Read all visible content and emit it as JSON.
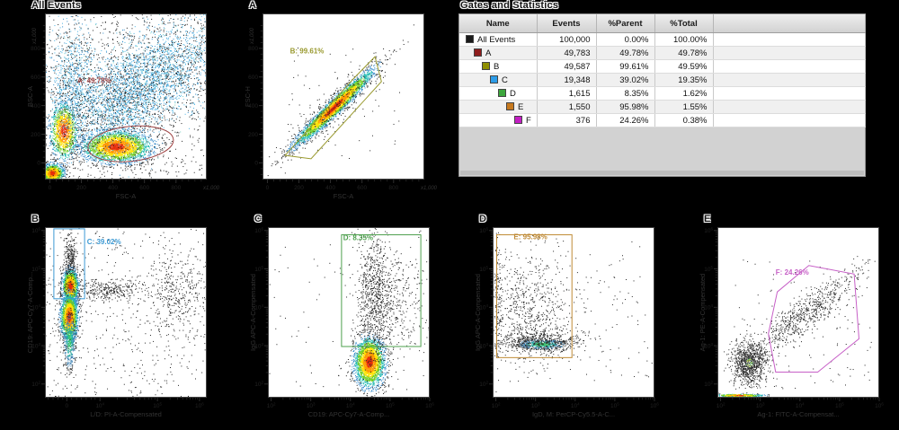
{
  "panel": {
    "title": "Gates and Statistics"
  },
  "table": {
    "columns": [
      "Name",
      "Events",
      "%Parent",
      "%Total",
      ""
    ],
    "rows": [
      {
        "name": "All Events",
        "color": "#1a1a1a",
        "level": 0,
        "events": "100,000",
        "parent": "0.00%",
        "total": "100.00%"
      },
      {
        "name": "A",
        "color": "#8f1d1d",
        "level": 1,
        "events": "49,783",
        "parent": "49.78%",
        "total": "49.78%"
      },
      {
        "name": "B",
        "color": "#8f8f00",
        "level": 2,
        "events": "49,587",
        "parent": "99.61%",
        "total": "49.59%"
      },
      {
        "name": "C",
        "color": "#2d9ce8",
        "level": 3,
        "events": "19,348",
        "parent": "39.02%",
        "total": "19.35%"
      },
      {
        "name": "D",
        "color": "#3ca63c",
        "level": 4,
        "events": "1,615",
        "parent": "8.35%",
        "total": "1.62%"
      },
      {
        "name": "E",
        "color": "#c7791e",
        "level": 5,
        "events": "1,550",
        "parent": "95.98%",
        "total": "1.55%"
      },
      {
        "name": "F",
        "color": "#c31ec3",
        "level": 6,
        "events": "376",
        "parent": "24.26%",
        "total": "0.38%"
      }
    ]
  },
  "chart_data": [
    {
      "id": "all-events",
      "title": "All Events",
      "type": "scatter",
      "xlabel": "FSC-A",
      "ylabel": "BSC-A",
      "x_scale": "linear",
      "y_scale": "linear",
      "x_range": [
        0,
        1000000
      ],
      "y_range": [
        0,
        1000000
      ],
      "x_multiplier": "x1,000",
      "y_multiplier": "x1,000",
      "x_majors": [
        {
          "f": 0.03,
          "t": "0"
        },
        {
          "f": 0.225,
          "t": "200"
        },
        {
          "f": 0.42,
          "t": "400"
        },
        {
          "f": 0.615,
          "t": "600"
        },
        {
          "f": 0.81,
          "t": "800"
        }
      ],
      "y_majors": [
        {
          "f": 0.21,
          "t": "800"
        },
        {
          "f": 0.3825,
          "t": "600"
        },
        {
          "f": 0.555,
          "t": "400"
        },
        {
          "f": 0.7275,
          "t": "200"
        },
        {
          "f": 0.9,
          "t": "0"
        }
      ],
      "gate": {
        "name": "A",
        "label": "A: 49.78%",
        "percent": 49.78,
        "color": "#a04545",
        "type": "ellipse",
        "cx": 0.53,
        "cy": 0.785,
        "rx": 0.265,
        "ry": 0.105,
        "rot": -6,
        "label_x": 0.2,
        "label_y": 0.42
      },
      "clusters": [
        {
          "palette": "hot",
          "cx": 0.045,
          "cy": 0.96,
          "sx": 0.035,
          "sy": 0.028,
          "n": 1100
        },
        {
          "palette": "hot",
          "cx": 0.115,
          "cy": 0.705,
          "sx": 0.042,
          "sy": 0.085,
          "n": 1300
        },
        {
          "palette": "hot",
          "cx": 0.44,
          "cy": 0.8,
          "sx": 0.105,
          "sy": 0.047,
          "n": 2800
        },
        {
          "palette": "cloud",
          "cx": 0.66,
          "cy": 0.38,
          "sx": 0.26,
          "sy": 0.13,
          "angle": -33,
          "n": 3000
        },
        {
          "palette": "cloud",
          "cx": 0.17,
          "cy": 0.4,
          "sx": 0.07,
          "sy": 0.17,
          "n": 800
        },
        {
          "palette": "cloud",
          "cx": 0.42,
          "cy": 0.58,
          "sx": 0.16,
          "sy": 0.12,
          "n": 900
        },
        {
          "palette": "dots",
          "uniform": true,
          "x0": 0.0,
          "y0": 0.0,
          "x1": 1.0,
          "y1": 1.0,
          "n": 1000
        }
      ]
    },
    {
      "id": "plot-a",
      "title": "A",
      "type": "scatter",
      "xlabel": "FSC-A",
      "ylabel": "FSC-H",
      "x_scale": "linear",
      "y_scale": "linear",
      "x_range": [
        0,
        1000000
      ],
      "y_range": [
        0,
        1000000
      ],
      "x_multiplier": "x1,000",
      "y_multiplier": "x1,000",
      "x_majors": [
        {
          "f": 0.03,
          "t": "0"
        },
        {
          "f": 0.225,
          "t": "200"
        },
        {
          "f": 0.42,
          "t": "400"
        },
        {
          "f": 0.615,
          "t": "600"
        },
        {
          "f": 0.81,
          "t": "800"
        }
      ],
      "y_majors": [
        {
          "f": 0.21,
          "t": "800"
        },
        {
          "f": 0.3825,
          "t": "600"
        },
        {
          "f": 0.555,
          "t": "400"
        },
        {
          "f": 0.7275,
          "t": "200"
        },
        {
          "f": 0.9,
          "t": "0"
        }
      ],
      "gate": {
        "name": "B",
        "label": "B: 99.61%",
        "percent": 99.61,
        "color": "#99992e",
        "type": "polygon",
        "points": [
          [
            0.14,
            0.855
          ],
          [
            0.555,
            0.4
          ],
          [
            0.695,
            0.26
          ],
          [
            0.735,
            0.41
          ],
          [
            0.3,
            0.875
          ]
        ],
        "label_x": 0.17,
        "label_y": 0.24
      },
      "clusters": [
        {
          "palette": "hot",
          "cx": 0.44,
          "cy": 0.565,
          "sx": 0.16,
          "sy": 0.021,
          "angle": -43,
          "n": 3200
        },
        {
          "palette": "dots",
          "cx": 0.45,
          "cy": 0.56,
          "sx": 0.18,
          "sy": 0.05,
          "angle": -43,
          "n": 300
        },
        {
          "palette": "dots",
          "uniform": true,
          "x0": 0.15,
          "y0": 0.2,
          "x1": 0.85,
          "y1": 0.9,
          "n": 70
        }
      ]
    },
    {
      "id": "plot-b",
      "title": "B",
      "type": "scatter",
      "xlabel": "L/D: PI-A-Compensated",
      "ylabel": "CD19: APC-Cy7-A-Comp...",
      "x_scale": "biexp",
      "y_scale": "log",
      "x_range": [
        0,
        1000000
      ],
      "y_range": [
        100,
        1000000
      ],
      "x_majors": [
        {
          "f": 0.135,
          "t": "0"
        },
        {
          "f": 0.34,
          "t": "10^4"
        },
        {
          "f": 0.695,
          "t": "10^5"
        },
        {
          "f": 0.955,
          "t": "10^6"
        }
      ],
      "x_minor": [
        0.02,
        0.05,
        0.08,
        0.11,
        0.165,
        0.195,
        0.225,
        0.255,
        0.285,
        0.31,
        0.447,
        0.509,
        0.554,
        0.588,
        0.616,
        0.64,
        0.66,
        0.679,
        0.773,
        0.819,
        0.851,
        0.877,
        0.897,
        0.915,
        0.929,
        0.943
      ],
      "y_majors": [
        {
          "f": 0.02,
          "t": "10^6"
        },
        {
          "f": 0.245,
          "t": "10^5"
        },
        {
          "f": 0.47,
          "t": "10^4"
        },
        {
          "f": 0.695,
          "t": "10^3"
        },
        {
          "f": 0.92,
          "t": "10^2"
        }
      ],
      "gate": {
        "name": "C",
        "label": "C: 39.02%",
        "percent": 39.02,
        "color": "#3d9ad4",
        "type": "rect",
        "x": 0.055,
        "y": 0.01,
        "w": 0.19,
        "h": 0.41,
        "label_x": 0.26,
        "label_y": 0.1
      },
      "clusters": [
        {
          "palette": "hot",
          "cx": 0.155,
          "cy": 0.345,
          "sx": 0.024,
          "sy": 0.05,
          "n": 1600
        },
        {
          "palette": "hot",
          "cx": 0.148,
          "cy": 0.525,
          "sx": 0.026,
          "sy": 0.068,
          "n": 1900
        },
        {
          "palette": "cool",
          "cx": 0.15,
          "cy": 0.67,
          "sx": 0.02,
          "sy": 0.09,
          "n": 450
        },
        {
          "palette": "dots",
          "cx": 0.155,
          "cy": 0.18,
          "sx": 0.022,
          "sy": 0.07,
          "n": 260
        },
        {
          "palette": "dots",
          "cx": 0.37,
          "cy": 0.365,
          "sx": 0.12,
          "sy": 0.03,
          "n": 330
        },
        {
          "palette": "dots",
          "cx": 0.8,
          "cy": 0.4,
          "sx": 0.095,
          "sy": 0.13,
          "n": 380
        },
        {
          "palette": "dots",
          "uniform": true,
          "x0": 0.0,
          "y0": 0.0,
          "x1": 1.0,
          "y1": 1.0,
          "n": 480
        }
      ]
    },
    {
      "id": "plot-c",
      "title": "C",
      "type": "scatter",
      "xlabel": "CD19: APC-Cy7-A-Comp...",
      "ylabel": "IgG APC-A-Compensated",
      "x_scale": "log",
      "y_scale": "log",
      "x_range": [
        100,
        1000000
      ],
      "y_range": [
        100,
        1000000
      ],
      "x_majors": [
        {
          "f": 0.02,
          "t": "10^2"
        },
        {
          "f": 0.265,
          "t": "10^3"
        },
        {
          "f": 0.51,
          "t": "10^4"
        },
        {
          "f": 0.755,
          "t": "10^5"
        },
        {
          "f": 1.0,
          "t": "10^6"
        }
      ],
      "y_majors": [
        {
          "f": 0.02,
          "t": "10^6"
        },
        {
          "f": 0.245,
          "t": "10^5"
        },
        {
          "f": 0.47,
          "t": "10^4"
        },
        {
          "f": 0.695,
          "t": "10^3"
        },
        {
          "f": 0.92,
          "t": "10^2"
        }
      ],
      "gate": {
        "name": "D",
        "label": "D: 8.35%",
        "percent": 8.35,
        "color": "#4ea04e",
        "type": "rect",
        "x": 0.455,
        "y": 0.045,
        "w": 0.49,
        "h": 0.655,
        "label_x": 0.465,
        "label_y": 0.075
      },
      "clusters": [
        {
          "palette": "hot",
          "cx": 0.625,
          "cy": 0.79,
          "sx": 0.046,
          "sy": 0.072,
          "n": 2600
        },
        {
          "palette": "dots",
          "cx": 0.66,
          "cy": 0.44,
          "sx": 0.055,
          "sy": 0.19,
          "n": 850
        },
        {
          "palette": "dots",
          "cx": 0.8,
          "cy": 0.42,
          "sx": 0.1,
          "sy": 0.17,
          "n": 300
        },
        {
          "palette": "dots",
          "uniform": true,
          "x0": 0.0,
          "y0": 0.1,
          "x1": 1.0,
          "y1": 0.95,
          "n": 90
        }
      ]
    },
    {
      "id": "plot-d",
      "title": "D",
      "type": "scatter",
      "xlabel": "IgD, M: PerCP-Cy5.5-A-C...",
      "ylabel": "IgG APC-A-Compensated",
      "x_scale": "log",
      "y_scale": "log",
      "x_range": [
        100,
        1000000
      ],
      "y_range": [
        100,
        1000000
      ],
      "x_majors": [
        {
          "f": 0.02,
          "t": "10^2"
        },
        {
          "f": 0.265,
          "t": "10^3"
        },
        {
          "f": 0.51,
          "t": "10^4"
        },
        {
          "f": 0.755,
          "t": "10^5"
        },
        {
          "f": 1.0,
          "t": "10^6"
        }
      ],
      "y_majors": [
        {
          "f": 0.02,
          "t": "10^6"
        },
        {
          "f": 0.245,
          "t": "10^5"
        },
        {
          "f": 0.47,
          "t": "10^4"
        },
        {
          "f": 0.695,
          "t": "10^3"
        },
        {
          "f": 0.92,
          "t": "10^2"
        }
      ],
      "gate": {
        "name": "E",
        "label": "E: 95.98%",
        "percent": 95.98,
        "color": "#bf8a35",
        "type": "rect",
        "x": 0.025,
        "y": 0.045,
        "w": 0.465,
        "h": 0.72,
        "label_x": 0.13,
        "label_y": 0.07
      },
      "clusters": [
        {
          "palette": "dots",
          "cx": 0.235,
          "cy": 0.48,
          "sx": 0.13,
          "sy": 0.17,
          "n": 700
        },
        {
          "palette": "cool",
          "cx": 0.3,
          "cy": 0.685,
          "sx": 0.085,
          "sy": 0.016,
          "n": 520
        },
        {
          "palette": "dots",
          "cx": 0.3,
          "cy": 0.665,
          "sx": 0.14,
          "sy": 0.035,
          "n": 470
        },
        {
          "palette": "dots",
          "cx": 0.03,
          "cy": 0.45,
          "sx": 0.012,
          "sy": 0.22,
          "n": 130
        },
        {
          "palette": "dots",
          "uniform": true,
          "x0": 0.5,
          "y0": 0.05,
          "x1": 1.0,
          "y1": 0.9,
          "n": 80
        }
      ]
    },
    {
      "id": "plot-e",
      "title": "E",
      "type": "scatter",
      "xlabel": "Ag-1: FITC-A-Compensat...",
      "ylabel": "Ag-1: PE-A-Compensated",
      "x_scale": "log",
      "y_scale": "log",
      "x_range": [
        100,
        1000000
      ],
      "y_range": [
        100,
        1000000
      ],
      "x_majors": [
        {
          "f": 0.02,
          "t": "10^2"
        },
        {
          "f": 0.265,
          "t": "10^3"
        },
        {
          "f": 0.51,
          "t": "10^4"
        },
        {
          "f": 0.755,
          "t": "10^5"
        },
        {
          "f": 1.0,
          "t": "10^6"
        }
      ],
      "y_majors": [
        {
          "f": 0.02,
          "t": "10^6"
        },
        {
          "f": 0.245,
          "t": "10^5"
        },
        {
          "f": 0.47,
          "t": "10^4"
        },
        {
          "f": 0.695,
          "t": "10^3"
        },
        {
          "f": 0.92,
          "t": "10^2"
        }
      ],
      "gate": {
        "name": "F",
        "label": "F: 24.26%",
        "percent": 24.26,
        "color": "#c75fc7",
        "type": "polygon",
        "points": [
          [
            0.36,
            0.85
          ],
          [
            0.315,
            0.625
          ],
          [
            0.37,
            0.38
          ],
          [
            0.565,
            0.225
          ],
          [
            0.845,
            0.275
          ],
          [
            0.875,
            0.655
          ],
          [
            0.62,
            0.85
          ]
        ],
        "label_x": 0.36,
        "label_y": 0.28
      },
      "clusters": [
        {
          "palette": "peppered",
          "cx": 0.195,
          "cy": 0.795,
          "sx": 0.055,
          "sy": 0.062,
          "n": 950
        },
        {
          "palette": "dots",
          "cx": 0.55,
          "cy": 0.5,
          "sx": 0.2,
          "sy": 0.045,
          "angle": -36,
          "n": 680
        },
        {
          "palette": "dots",
          "uniform": true,
          "x0": 0.05,
          "y0": 0.18,
          "x1": 0.95,
          "y1": 0.95,
          "n": 130
        },
        {
          "palette": "hot",
          "cx": 0.13,
          "cy": 0.985,
          "sx": 0.075,
          "sy": 0.004,
          "n": 350
        }
      ]
    }
  ]
}
